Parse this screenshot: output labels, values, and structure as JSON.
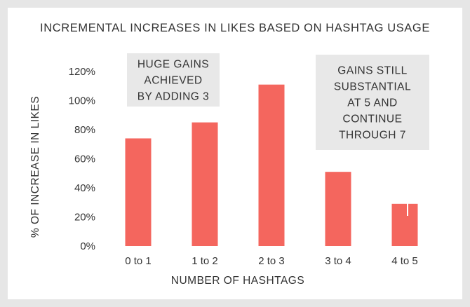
{
  "chart_data": {
    "type": "bar",
    "title": "INCREMENTAL INCREASES IN LIKES BASED ON HASHTAG USAGE",
    "xlabel": "NUMBER OF HASHTAGS",
    "ylabel": "% OF INCREASE IN LIKES",
    "categories": [
      "0 to 1",
      "1 to 2",
      "2 to 3",
      "3 to 4",
      "4 to 5"
    ],
    "values": [
      74,
      85,
      111,
      51,
      29
    ],
    "ylim": [
      0,
      120
    ],
    "yticks": [
      "0%",
      "20%",
      "40%",
      "60%",
      "80%",
      "100%",
      "120%"
    ],
    "grid": false,
    "bar_color": "#f4665e",
    "annotations": [
      {
        "target_category": "2 to 3",
        "lines": [
          "HUGE GAINS",
          "ACHIEVED",
          "BY ADDING 3"
        ]
      },
      {
        "target_category": "4 to 5",
        "lines": [
          "GAINS STILL",
          "SUBSTANTIAL",
          "AT 5 AND",
          "CONTINUE",
          "THROUGH 7"
        ]
      }
    ]
  },
  "colors": {
    "background": "#e6e6e6",
    "panel": "#ffffff",
    "annotation_box": "#e8e8e8",
    "text": "#333333"
  }
}
